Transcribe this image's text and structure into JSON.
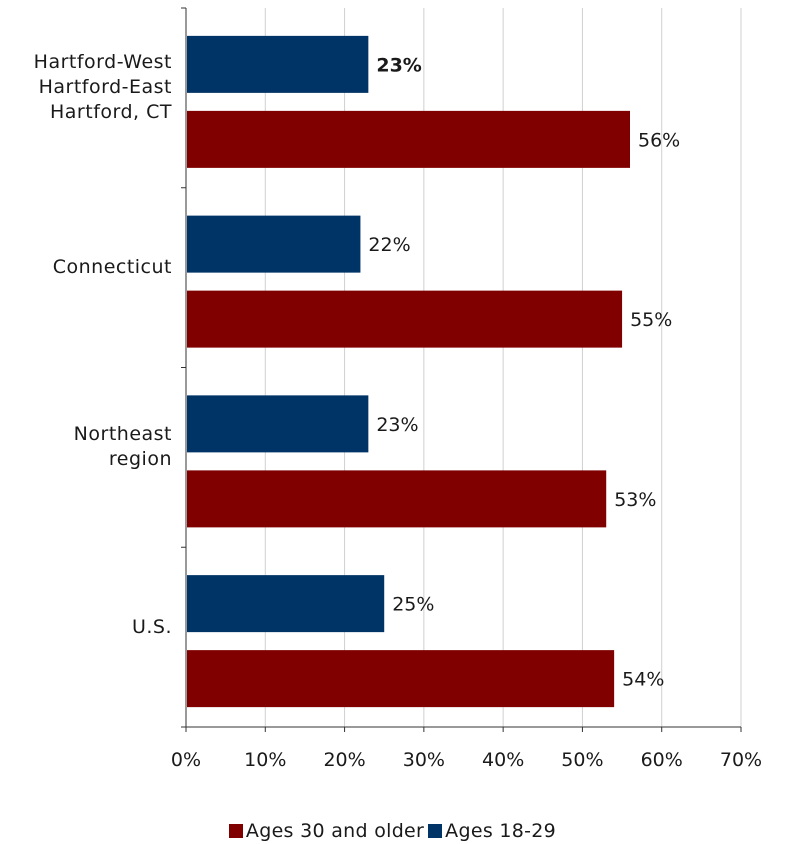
{
  "chart_data": {
    "type": "bar",
    "orientation": "horizontal",
    "categories": [
      "Hartford-West\nHartford-East\nHartford, CT",
      "Connecticut",
      "Northeast\nregion",
      "U.S."
    ],
    "series": [
      {
        "name": "Ages 18-29",
        "color": "#003366",
        "values": [
          23,
          22,
          23,
          25
        ],
        "labels": [
          "23%",
          "22%",
          "23%",
          "25%"
        ]
      },
      {
        "name": "Ages 30 and older",
        "color": "#800000",
        "values": [
          56,
          55,
          53,
          54
        ],
        "labels": [
          "56%",
          "55%",
          "53%",
          "54%"
        ]
      }
    ],
    "xlim": [
      0,
      70
    ],
    "xticks": [
      "0%",
      "10%",
      "20%",
      "30%",
      "40%",
      "50%",
      "60%",
      "70%"
    ],
    "grid": true,
    "legend_position": "bottom",
    "legend_order": [
      "Ages 30 and older",
      "Ages 18-29"
    ]
  }
}
